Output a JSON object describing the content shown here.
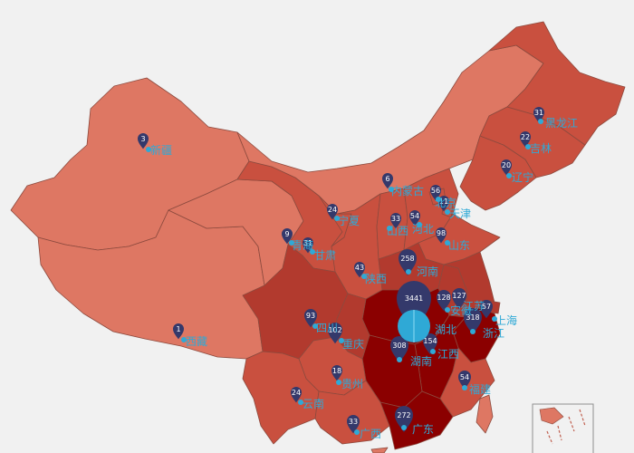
{
  "colors": {
    "background": "#f1f1f1",
    "level_low": "#de7763",
    "level_mid": "#c9503f",
    "level_high": "#b23a2e",
    "level_top": "#8b0000",
    "pin": "#34396b",
    "label": "#2fa9d6"
  },
  "provinces": [
    {
      "key": "xinjiang",
      "label": "新疆",
      "value": "3",
      "level": "low"
    },
    {
      "key": "xizang",
      "label": "西藏",
      "value": "1",
      "level": "low"
    },
    {
      "key": "qinghai",
      "label": "青海",
      "value": "9",
      "level": "low"
    },
    {
      "key": "gansu",
      "label": "甘肃",
      "value": "31",
      "level": "mid"
    },
    {
      "key": "neimenggu",
      "label": "内蒙古",
      "value": "6",
      "level": "low"
    },
    {
      "key": "ningxia",
      "label": "宁夏",
      "value": "24",
      "level": "mid"
    },
    {
      "key": "shaanxi",
      "label": "陕西",
      "value": "43",
      "level": "mid"
    },
    {
      "key": "shanxi",
      "label": "山西",
      "value": "33",
      "level": "mid"
    },
    {
      "key": "hebei",
      "label": "河北",
      "value": "54",
      "level": "mid"
    },
    {
      "key": "beijing",
      "label": "北京",
      "value": "56",
      "level": "mid"
    },
    {
      "key": "tianjin",
      "label": "天津",
      "value": "11",
      "level": "mid"
    },
    {
      "key": "shandong",
      "label": "山东",
      "value": "98",
      "level": "mid"
    },
    {
      "key": "henan",
      "label": "河南",
      "value": "258",
      "level": "high"
    },
    {
      "key": "hubei",
      "label": "湖北",
      "value": "3441",
      "level": "top"
    },
    {
      "key": "anhui",
      "label": "安徽",
      "value": "128",
      "level": "high"
    },
    {
      "key": "jiangsu",
      "label": "江苏",
      "value": "127",
      "level": "high"
    },
    {
      "key": "shanghai",
      "label": "上海",
      "value": "57",
      "level": "high"
    },
    {
      "key": "zhejiang",
      "label": "浙江",
      "value": "318",
      "level": "top"
    },
    {
      "key": "jiangxi",
      "label": "江西",
      "value": "154",
      "level": "top"
    },
    {
      "key": "hunan",
      "label": "湖南",
      "value": "308",
      "level": "top"
    },
    {
      "key": "sichuan",
      "label": "四川",
      "value": "93",
      "level": "high"
    },
    {
      "key": "chongqing",
      "label": "重庆",
      "value": "102",
      "level": "high"
    },
    {
      "key": "guizhou",
      "label": "贵州",
      "value": "18",
      "level": "mid"
    },
    {
      "key": "yunnan",
      "label": "云南",
      "value": "24",
      "level": "mid"
    },
    {
      "key": "guangxi",
      "label": "广西",
      "value": "33",
      "level": "mid"
    },
    {
      "key": "guangdong",
      "label": "广东",
      "value": "272",
      "level": "top"
    },
    {
      "key": "fujian",
      "label": "福建",
      "value": "54",
      "level": "mid"
    },
    {
      "key": "heilongjiang",
      "label": "黑龙江",
      "value": "31",
      "level": "mid"
    },
    {
      "key": "jilin",
      "label": "吉林",
      "value": "22",
      "level": "mid"
    },
    {
      "key": "liaoning",
      "label": "辽宁",
      "value": "20",
      "level": "mid"
    }
  ]
}
